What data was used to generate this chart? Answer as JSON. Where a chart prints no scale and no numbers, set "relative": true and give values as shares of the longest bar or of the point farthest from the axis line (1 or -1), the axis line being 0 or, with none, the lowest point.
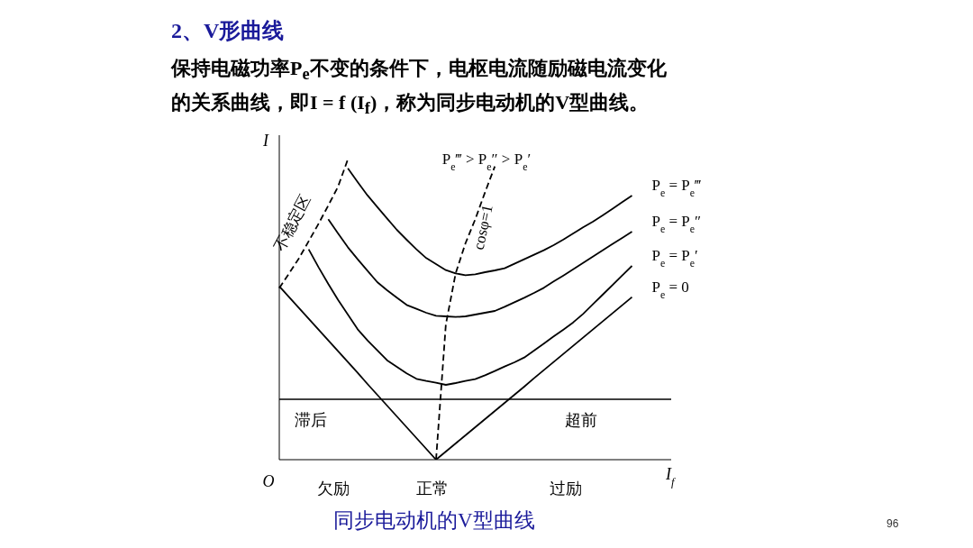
{
  "chart_data": {
    "type": "line",
    "relative": true,
    "title": "2、V形曲线",
    "subtitle": "保持电磁功率P$_{e}$不变的条件下，电枢电流随励磁电流变化的关系曲线，即I = f (I$_{f}$)，称为同步电动机的V型曲线。",
    "xlabel": "I$_{f}$",
    "ylabel": "I",
    "grid": false,
    "legend": false,
    "marker": "none",
    "line_style": "solid",
    "categories": [
      null,
      null,
      null,
      null,
      null,
      null,
      null,
      null,
      null,
      null,
      null,
      null,
      null,
      null,
      null,
      null,
      null,
      null,
      null,
      null,
      null,
      null,
      null,
      null,
      null,
      null,
      null,
      null,
      null,
      null,
      null,
      null,
      null,
      null,
      null,
      null,
      null,
      null,
      null,
      null,
      null
    ],
    "series": [
      {
        "name": "P$_{e}$ = P$_{e}$‴",
        "color": "#000000",
        "values": [
          null,
          null,
          null,
          null,
          null,
          null,
          null,
          0.97,
          0.924,
          0.88,
          0.841,
          0.803,
          0.765,
          0.732,
          0.7,
          0.671,
          0.651,
          0.631,
          0.62,
          0.614,
          0.617,
          0.624,
          0.63,
          0.637,
          0.652,
          0.667,
          0.682,
          0.697,
          0.714,
          0.733,
          0.753,
          0.773,
          0.792,
          0.813,
          0.835,
          0.857,
          0.879,
          null,
          null,
          null,
          null
        ]
      },
      {
        "name": "P$_{e}$ = P$_{e}$″",
        "color": "#000000",
        "values": [
          null,
          null,
          null,
          null,
          null,
          0.8,
          0.753,
          0.707,
          0.667,
          0.629,
          0.591,
          0.564,
          0.539,
          0.515,
          0.502,
          0.489,
          0.479,
          0.477,
          0.475,
          0.477,
          0.483,
          0.489,
          0.495,
          0.509,
          0.524,
          0.539,
          0.555,
          0.572,
          0.593,
          0.613,
          0.634,
          0.655,
          0.676,
          0.697,
          0.718,
          0.738,
          0.759,
          null,
          null,
          null,
          null
        ]
      },
      {
        "name": "P$_{e}$ = P$_{e}$′",
        "color": "#000000",
        "values": [
          null,
          null,
          null,
          0.7,
          0.641,
          0.585,
          0.532,
          0.483,
          0.434,
          0.397,
          0.364,
          0.331,
          0.309,
          0.287,
          0.269,
          0.262,
          0.256,
          0.249,
          0.255,
          0.262,
          0.268,
          0.281,
          0.295,
          0.31,
          0.324,
          0.34,
          0.363,
          0.386,
          0.41,
          0.433,
          0.457,
          0.485,
          0.517,
          0.549,
          0.581,
          0.613,
          0.645,
          null,
          null,
          null,
          null
        ]
      },
      {
        "name": "P$_{e}$ = 0",
        "color": "#000000",
        "values": [
          0.577,
          0.541,
          0.505,
          0.469,
          0.433,
          0.397,
          0.361,
          0.325,
          0.289,
          0.252,
          0.216,
          0.18,
          0.144,
          0.108,
          0.072,
          0.036,
          0,
          0.027,
          0.054,
          0.081,
          0.108,
          0.135,
          0.162,
          0.189,
          0.216,
          0.243,
          0.271,
          0.298,
          0.325,
          0.352,
          0.379,
          0.406,
          0.433,
          0.46,
          0.487,
          0.514,
          0.541,
          null,
          null,
          null,
          null
        ]
      },
      {
        "name": "不稳定区",
        "color": "#000000",
        "line_style": "dashed",
        "values": [
          0.571,
          0.62,
          0.67,
          0.727,
          0.785,
          0.846,
          0.909,
          1,
          null,
          null,
          null,
          null,
          null,
          null,
          null,
          null,
          null,
          null,
          null,
          null,
          null,
          null,
          null,
          null,
          null,
          null,
          null,
          null,
          null,
          null,
          null,
          null,
          null,
          null,
          null,
          null,
          null,
          null,
          null,
          null,
          null
        ]
      },
      {
        "name": "cosφ=1",
        "color": "#000000",
        "line_style": "dashed",
        "values": [
          null,
          null,
          null,
          null,
          null,
          null,
          null,
          null,
          null,
          null,
          null,
          null,
          null,
          null,
          null,
          null,
          0,
          0.45,
          0.62,
          0.72,
          0.8,
          0.89,
          0.976,
          null,
          null,
          null,
          null,
          null,
          null,
          null,
          null,
          null,
          null,
          null,
          null,
          null,
          null,
          null,
          null,
          null,
          null
        ]
      }
    ],
    "ref_lines": [
      {
        "axis": "y",
        "value": 0.201,
        "color": "#000000"
      }
    ],
    "annotations": [
      "P$_{e}$‴ > P$_{e}$″ > P$_{e}$′",
      "滞后",
      "超前",
      "欠励",
      "正常",
      "过励",
      "O",
      "同步电动机的V型曲线",
      "96"
    ]
  }
}
